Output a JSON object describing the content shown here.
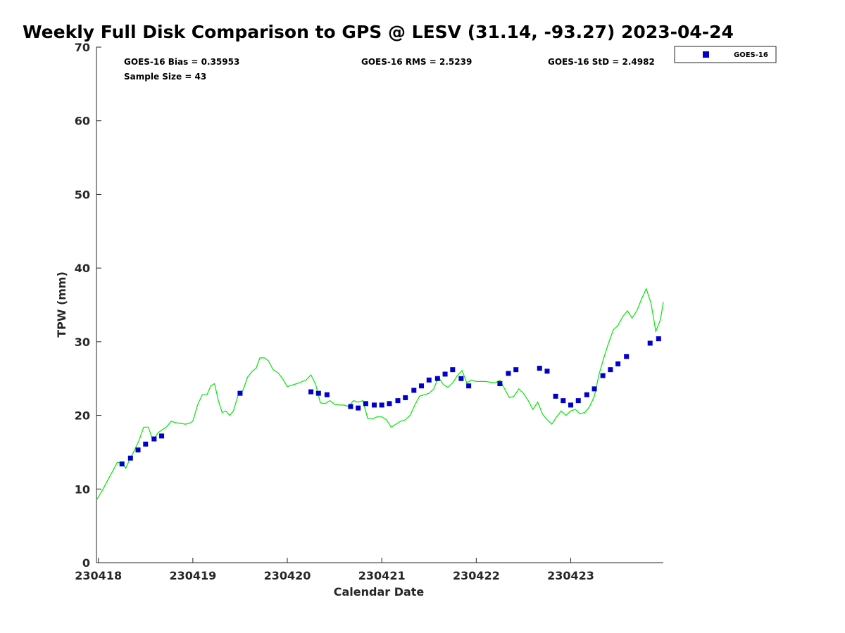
{
  "chart_data": {
    "type": "scatter",
    "title": "Weekly Full Disk Comparison to GPS @ LESV (31.14, -93.27) 2023-04-24",
    "xlabel": "Calendar Date",
    "ylabel": "TPW (mm)",
    "xlim": [
      -0.02,
      5.98
    ],
    "ylim": [
      0,
      70
    ],
    "x_tick_labels": [
      "230418",
      "230419",
      "230420",
      "230421",
      "230422",
      "230423"
    ],
    "x_tick_values": [
      0,
      1,
      2,
      3,
      4,
      5
    ],
    "y_ticks": [
      0,
      10,
      20,
      30,
      40,
      50,
      60,
      70
    ],
    "y_tick_labels": [
      "0",
      "10",
      "20",
      "30",
      "40",
      "50",
      "60",
      "70"
    ],
    "stats": {
      "bias": "GOES-16 Bias = 0.35953",
      "rms": "GOES-16 RMS = 2.5239",
      "std": "GOES-16 StD = 2.4982",
      "sample": "Sample Size = 43"
    },
    "legend": {
      "label": "GOES-16",
      "position": "outside-top-right"
    },
    "colors": {
      "goes": "#0000cc",
      "gps": "#00e600",
      "axis": "#262626"
    },
    "series": [
      {
        "name": "GOES-16",
        "kind": "markers",
        "x": [
          0.25,
          0.34,
          0.42,
          0.5,
          0.59,
          0.67,
          1.5,
          2.25,
          2.33,
          2.42,
          2.67,
          2.75,
          2.83,
          2.92,
          3.0,
          3.08,
          3.17,
          3.25,
          3.34,
          3.42,
          3.5,
          3.59,
          3.67,
          3.75,
          3.84,
          3.92,
          4.25,
          4.34,
          4.42,
          4.67,
          4.75,
          4.84,
          4.92,
          5.0,
          5.08,
          5.17,
          5.25,
          5.34,
          5.42,
          5.5,
          5.59,
          5.84,
          5.93
        ],
        "y": [
          13.4,
          14.2,
          15.3,
          16.1,
          16.8,
          17.2,
          23.0,
          23.2,
          23.0,
          22.8,
          21.2,
          21.0,
          21.6,
          21.4,
          21.4,
          21.6,
          22.0,
          22.4,
          23.4,
          24.0,
          24.8,
          25.0,
          25.6,
          26.2,
          25.0,
          24.0,
          24.3,
          25.7,
          26.2,
          26.4,
          26.0,
          22.6,
          22.0,
          21.4,
          22.0,
          22.8,
          23.6,
          25.4,
          26.2,
          27.0,
          28.0,
          29.8,
          30.4
        ]
      },
      {
        "name": "GPS",
        "kind": "line",
        "x": [
          -0.02,
          0.05,
          0.1,
          0.15,
          0.2,
          0.25,
          0.29,
          0.33,
          0.38,
          0.43,
          0.48,
          0.53,
          0.57,
          0.6,
          0.63,
          0.67,
          0.72,
          0.77,
          0.82,
          0.88,
          0.92,
          0.96,
          1.0,
          1.05,
          1.1,
          1.15,
          1.19,
          1.23,
          1.27,
          1.31,
          1.35,
          1.39,
          1.43,
          1.48,
          1.53,
          1.58,
          1.63,
          1.67,
          1.71,
          1.76,
          1.8,
          1.85,
          1.9,
          1.95,
          2.0,
          2.1,
          2.2,
          2.25,
          2.3,
          2.35,
          2.4,
          2.45,
          2.5,
          2.55,
          2.6,
          2.65,
          2.7,
          2.75,
          2.8,
          2.85,
          2.9,
          2.95,
          3.0,
          3.05,
          3.1,
          3.15,
          3.2,
          3.25,
          3.3,
          3.35,
          3.4,
          3.45,
          3.5,
          3.55,
          3.6,
          3.65,
          3.7,
          3.75,
          3.8,
          3.85,
          3.9,
          3.95,
          4.0,
          4.1,
          4.2,
          4.25,
          4.3,
          4.35,
          4.4,
          4.45,
          4.5,
          4.55,
          4.6,
          4.65,
          4.7,
          4.75,
          4.8,
          4.85,
          4.9,
          4.95,
          5.0,
          5.05,
          5.1,
          5.15,
          5.2,
          5.25,
          5.3,
          5.35,
          5.4,
          5.45,
          5.5,
          5.55,
          5.6,
          5.65,
          5.7,
          5.75,
          5.8,
          5.85,
          5.9,
          5.95,
          5.98
        ],
        "y": [
          8.5,
          10.0,
          11.2,
          12.4,
          13.6,
          13.6,
          12.8,
          14.0,
          15.2,
          16.6,
          18.4,
          18.4,
          16.8,
          17.0,
          17.6,
          18.0,
          18.4,
          19.2,
          19.0,
          18.9,
          18.8,
          18.9,
          19.2,
          21.4,
          22.8,
          22.8,
          24.0,
          24.3,
          22.0,
          20.4,
          20.6,
          20.0,
          20.6,
          22.8,
          23.4,
          25.2,
          26.0,
          26.4,
          27.8,
          27.8,
          27.4,
          26.2,
          25.8,
          25.0,
          23.9,
          24.3,
          24.8,
          25.5,
          24.2,
          21.7,
          21.6,
          22.0,
          21.5,
          21.4,
          21.4,
          21.2,
          22.0,
          21.8,
          22.0,
          19.6,
          19.5,
          19.8,
          19.8,
          19.4,
          18.4,
          18.8,
          19.2,
          19.4,
          20.0,
          21.4,
          22.6,
          22.8,
          23.0,
          23.6,
          25.2,
          24.2,
          23.8,
          24.4,
          25.4,
          26.1,
          24.4,
          24.8,
          24.6,
          24.6,
          24.4,
          24.8,
          23.6,
          22.4,
          22.6,
          23.6,
          23.0,
          22.0,
          20.8,
          21.8,
          20.2,
          19.4,
          18.8,
          19.8,
          20.6,
          20.0,
          20.6,
          20.8,
          20.2,
          20.4,
          21.2,
          22.6,
          25.6,
          27.8,
          29.8,
          31.6,
          32.2,
          33.4,
          34.2,
          33.2,
          34.2,
          35.8,
          37.2,
          35.2,
          31.4,
          33.0,
          35.4
        ]
      }
    ]
  }
}
